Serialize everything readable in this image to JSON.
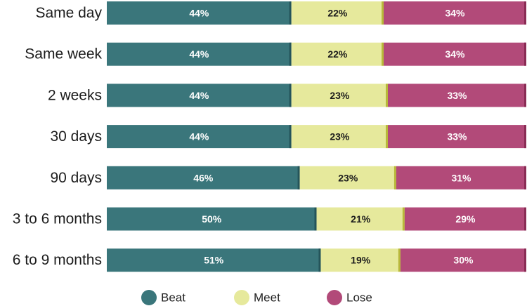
{
  "chart_data": {
    "type": "bar",
    "orientation": "horizontal",
    "stacked": true,
    "percent": true,
    "title": "",
    "xlabel": "",
    "ylabel": "",
    "xlim": [
      0,
      100
    ],
    "categories": [
      "Same day",
      "Same week",
      "2 weeks",
      "30 days",
      "90 days",
      "3 to 6 months",
      "6 to 9 months"
    ],
    "series": [
      {
        "name": "Beat",
        "values": [
          44,
          44,
          44,
          44,
          46,
          50,
          51
        ],
        "color": "#3a767b",
        "label_color": "#ffffff"
      },
      {
        "name": "Meet",
        "values": [
          22,
          22,
          23,
          23,
          23,
          21,
          19
        ],
        "color": "#e6e99c",
        "label_color": "#1c1c1c"
      },
      {
        "name": "Lose",
        "values": [
          34,
          34,
          33,
          33,
          31,
          29,
          30
        ],
        "color": "#b24a79",
        "label_color": "#ffffff"
      }
    ],
    "value_labels": [
      [
        "44%",
        "22%",
        "34%"
      ],
      [
        "44%",
        "22%",
        "34%"
      ],
      [
        "44%",
        "23%",
        "33%"
      ],
      [
        "44%",
        "23%",
        "33%"
      ],
      [
        "46%",
        "23%",
        "31%"
      ],
      [
        "50%",
        "21%",
        "29%"
      ],
      [
        "51%",
        "19%",
        "30%"
      ]
    ],
    "legend": {
      "position": "bottom",
      "items": [
        "Beat",
        "Meet",
        "Lose"
      ]
    },
    "separator_colors": [
      "#24545a",
      "#b8b83a",
      "#8a2c55"
    ],
    "grid": false
  }
}
